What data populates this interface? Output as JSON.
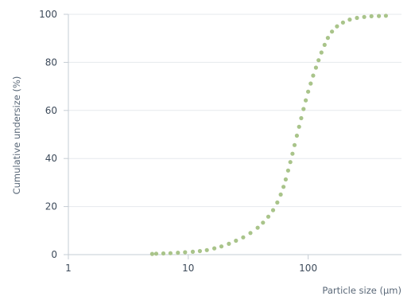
{
  "chart_data": {
    "type": "scatter",
    "title": "",
    "xlabel": "Particle size (µm)",
    "ylabel": "Cumulative undersize (%)",
    "xscale": "log",
    "xlim": [
      1,
      600
    ],
    "ylim": [
      0,
      100
    ],
    "grid": "horizontal",
    "x_ticks": [
      {
        "value": 1,
        "label": "1"
      },
      {
        "value": 10,
        "label": "10"
      },
      {
        "value": 100,
        "label": "100"
      }
    ],
    "y_ticks": [
      {
        "value": 0,
        "label": "0"
      },
      {
        "value": 20,
        "label": "20"
      },
      {
        "value": 40,
        "label": "40"
      },
      {
        "value": 60,
        "label": "60"
      },
      {
        "value": 80,
        "label": "80"
      },
      {
        "value": 100,
        "label": "100"
      }
    ],
    "series": [
      {
        "color": "#a9c48a",
        "points": [
          [
            5.0,
            0.3
          ],
          [
            5.4,
            0.4
          ],
          [
            6.2,
            0.5
          ],
          [
            7.1,
            0.6
          ],
          [
            8.2,
            0.8
          ],
          [
            9.4,
            1.0
          ],
          [
            10.9,
            1.2
          ],
          [
            12.5,
            1.5
          ],
          [
            14.3,
            1.9
          ],
          [
            16.5,
            2.6
          ],
          [
            18.9,
            3.4
          ],
          [
            21.8,
            4.5
          ],
          [
            25.0,
            5.8
          ],
          [
            28.7,
            7.2
          ],
          [
            33.0,
            9.0
          ],
          [
            37.9,
            11.2
          ],
          [
            42.0,
            13.3
          ],
          [
            46.5,
            15.8
          ],
          [
            51.0,
            18.5
          ],
          [
            55.3,
            21.7
          ],
          [
            59.0,
            25.0
          ],
          [
            62.3,
            28.2
          ],
          [
            65.0,
            31.3
          ],
          [
            68.0,
            35.0
          ],
          [
            71.0,
            38.5
          ],
          [
            74.0,
            42.0
          ],
          [
            77.0,
            45.6
          ],
          [
            80.5,
            49.5
          ],
          [
            84.0,
            53.2
          ],
          [
            87.5,
            56.8
          ],
          [
            91.5,
            60.6
          ],
          [
            95.5,
            64.2
          ],
          [
            100,
            67.8
          ],
          [
            105,
            71.2
          ],
          [
            110,
            74.5
          ],
          [
            116,
            77.8
          ],
          [
            122,
            80.9
          ],
          [
            129,
            84.1
          ],
          [
            137,
            87.3
          ],
          [
            146,
            90.2
          ],
          [
            158,
            92.8
          ],
          [
            174,
            95.0
          ],
          [
            195,
            96.6
          ],
          [
            222,
            97.8
          ],
          [
            255,
            98.5
          ],
          [
            293,
            98.9
          ],
          [
            337,
            99.2
          ],
          [
            389,
            99.3
          ],
          [
            445,
            99.4
          ]
        ]
      }
    ]
  }
}
